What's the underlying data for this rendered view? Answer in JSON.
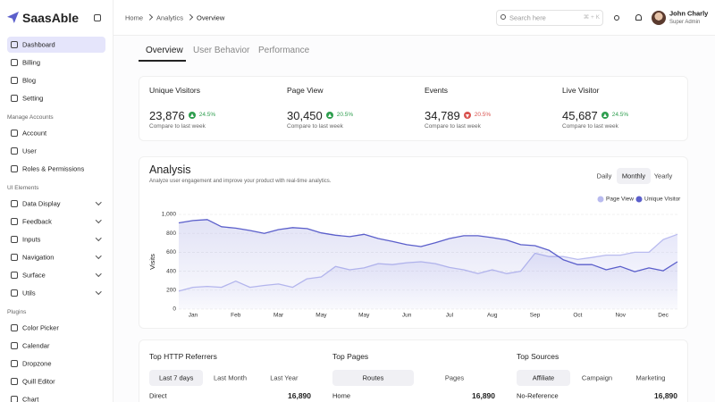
{
  "sidebar": {
    "brand": "SaasAble",
    "menu": [
      {
        "label": "Dashboard",
        "active": true
      },
      {
        "label": "Billing"
      },
      {
        "label": "Blog"
      },
      {
        "label": "Setting"
      }
    ],
    "sections": [
      {
        "title": "Manage Accounts",
        "items": [
          {
            "label": "Account"
          },
          {
            "label": "User"
          },
          {
            "label": "Roles & Permissions"
          }
        ]
      },
      {
        "title": "UI Elements",
        "items": [
          {
            "label": "Data Display",
            "expandable": true
          },
          {
            "label": "Feedback",
            "expandable": true
          },
          {
            "label": "Inputs",
            "expandable": true
          },
          {
            "label": "Navigation",
            "expandable": true
          },
          {
            "label": "Surface",
            "expandable": true
          },
          {
            "label": "Utils",
            "expandable": true
          }
        ]
      },
      {
        "title": "Plugins",
        "items": [
          {
            "label": "Color Picker"
          },
          {
            "label": "Calendar"
          },
          {
            "label": "Dropzone"
          },
          {
            "label": "Quill Editor"
          },
          {
            "label": "Chart"
          }
        ]
      }
    ]
  },
  "header": {
    "breadcrumb": [
      "Home",
      "Analytics",
      "Overview"
    ],
    "search_placeholder": "Search here",
    "search_shortcut": "⌘ + K",
    "user_name": "John Charly",
    "user_role": "Super Admin"
  },
  "tabs": {
    "items": [
      "Overview",
      "User Behavior",
      "Performance"
    ],
    "active": 0
  },
  "stats": [
    {
      "label": "Unique Visitors",
      "value": "23,876",
      "change": "24.5%",
      "direction": "up",
      "note": "Compare to last week"
    },
    {
      "label": "Page View",
      "value": "30,450",
      "change": "20.5%",
      "direction": "up",
      "note": "Compare to last week"
    },
    {
      "label": "Events",
      "value": "34,789",
      "change": "20.5%",
      "direction": "down",
      "note": "Compare to last week"
    },
    {
      "label": "Live Visitor",
      "value": "45,687",
      "change": "24.5%",
      "direction": "up",
      "note": "Compare to last week"
    }
  ],
  "chart_data": {
    "type": "line",
    "title": "Analysis",
    "subtitle": "Analyze user engagement and improve your product with real-time analytics.",
    "periods": [
      "Daily",
      "Monthly",
      "Yearly"
    ],
    "active_period": 1,
    "y_label": "Visits",
    "categories": [
      null,
      "Jan",
      null,
      null,
      "Feb",
      null,
      null,
      "Mar",
      null,
      null,
      "May",
      null,
      null,
      "May",
      null,
      null,
      "Jun",
      null,
      null,
      "Jul",
      null,
      null,
      "Aug",
      null,
      null,
      "Sep",
      null,
      null,
      "Oct",
      null,
      null,
      "Nov",
      null,
      null,
      "Dec",
      null
    ],
    "series": [
      {
        "name": "Page View",
        "color": "#b9bbef",
        "values": [
          190,
          230,
          240,
          230,
          295,
          230,
          250,
          265,
          230,
          320,
          340,
          450,
          415,
          435,
          480,
          470,
          490,
          500,
          480,
          440,
          415,
          375,
          415,
          375,
          400,
          590,
          555,
          555,
          525,
          545,
          570,
          570,
          600,
          600,
          735,
          790
        ]
      },
      {
        "name": "Unique Visitor",
        "color": "#5b5fcb",
        "values": [
          910,
          935,
          945,
          870,
          855,
          830,
          800,
          840,
          860,
          850,
          805,
          780,
          765,
          790,
          745,
          715,
          680,
          660,
          700,
          745,
          775,
          775,
          755,
          730,
          680,
          670,
          620,
          520,
          470,
          470,
          415,
          450,
          395,
          435,
          405,
          500
        ]
      }
    ],
    "ylim": [
      0,
      1000
    ],
    "yticks": [
      0,
      200,
      400,
      600,
      800,
      {
        "value": 1000,
        "label": "1,000"
      }
    ],
    "grid": true,
    "area": true,
    "legend": "top-right"
  },
  "top_lists": [
    {
      "title": "Top HTTP Referrers",
      "filters": [
        "Last 7 days",
        "Last Month",
        "Last Year"
      ],
      "active_filter": 0,
      "rows": [
        {
          "label": "Direct",
          "value": "16,890"
        }
      ]
    },
    {
      "title": "Top Pages",
      "filters": [
        "Routes",
        "Pages"
      ],
      "active_filter": 0,
      "rows": [
        {
          "label": "Home",
          "value": "16,890"
        }
      ]
    },
    {
      "title": "Top Sources",
      "filters": [
        "Affiliate",
        "Campaign",
        "Marketing"
      ],
      "active_filter": 0,
      "rows": [
        {
          "label": "No-Reference",
          "value": "16,890"
        }
      ]
    }
  ]
}
